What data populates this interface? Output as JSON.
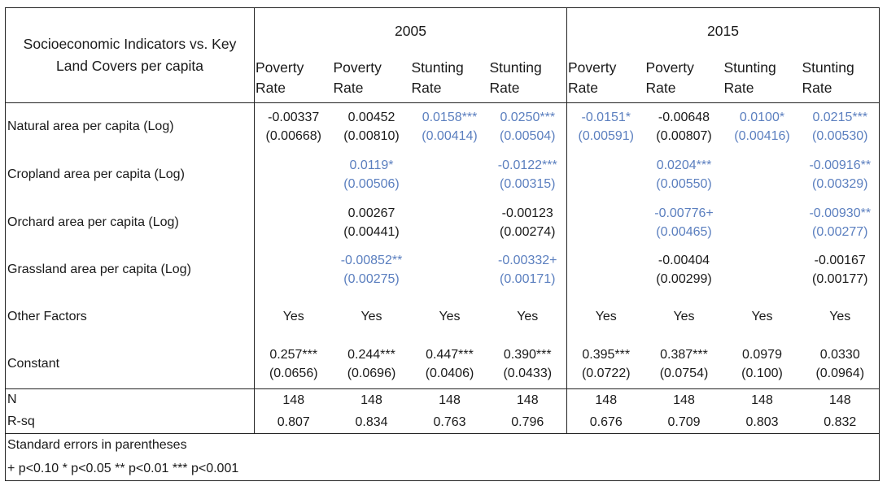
{
  "table": {
    "corner_title": "Socioeconomic Indicators vs. Key Land Covers per capita",
    "years": [
      "2005",
      "2015"
    ],
    "column_headers": [
      "Poverty Rate",
      "Poverty Rate",
      "Stunting Rate",
      "Stunting Rate",
      "Poverty Rate",
      "Poverty Rate",
      "Stunting Rate",
      "Stunting Rate"
    ],
    "highlight_color": "#5b7fbf",
    "rows": [
      {
        "label": "Natural area per capita (Log)",
        "cells": [
          {
            "coef": "-0.00337",
            "se": "(0.00668)",
            "sig": false
          },
          {
            "coef": "0.00452",
            "se": "(0.00810)",
            "sig": false
          },
          {
            "coef": "0.0158***",
            "se": "(0.00414)",
            "sig": true
          },
          {
            "coef": "0.0250***",
            "se": "(0.00504)",
            "sig": true
          },
          {
            "coef": "-0.0151*",
            "se": "(0.00591)",
            "sig": true
          },
          {
            "coef": "-0.00648",
            "se": "(0.00807)",
            "sig": false
          },
          {
            "coef": "0.0100*",
            "se": "(0.00416)",
            "sig": true
          },
          {
            "coef": "0.0215***",
            "se": "(0.00530)",
            "sig": true
          }
        ]
      },
      {
        "label": "Cropland area per capita (Log)",
        "cells": [
          {
            "coef": "",
            "se": "",
            "sig": false
          },
          {
            "coef": "0.0119*",
            "se": "(0.00506)",
            "sig": true
          },
          {
            "coef": "",
            "se": "",
            "sig": false
          },
          {
            "coef": "-0.0122***",
            "se": "(0.00315)",
            "sig": true
          },
          {
            "coef": "",
            "se": "",
            "sig": false
          },
          {
            "coef": "0.0204***",
            "se": "(0.00550)",
            "sig": true
          },
          {
            "coef": "",
            "se": "",
            "sig": false
          },
          {
            "coef": "-0.00916**",
            "se": "(0.00329)",
            "sig": true
          }
        ]
      },
      {
        "label": "Orchard area per capita (Log)",
        "cells": [
          {
            "coef": "",
            "se": "",
            "sig": false
          },
          {
            "coef": "0.00267",
            "se": "(0.00441)",
            "sig": false
          },
          {
            "coef": "",
            "se": "",
            "sig": false
          },
          {
            "coef": "-0.00123",
            "se": "(0.00274)",
            "sig": false
          },
          {
            "coef": "",
            "se": "",
            "sig": false
          },
          {
            "coef": "-0.00776+",
            "se": "(0.00465)",
            "sig": true
          },
          {
            "coef": "",
            "se": "",
            "sig": false
          },
          {
            "coef": "-0.00930**",
            "se": "(0.00277)",
            "sig": true
          }
        ]
      },
      {
        "label": "Grassland area per capita (Log)",
        "cells": [
          {
            "coef": "",
            "se": "",
            "sig": false
          },
          {
            "coef": "-0.00852**",
            "se": "(0.00275)",
            "sig": true
          },
          {
            "coef": "",
            "se": "",
            "sig": false
          },
          {
            "coef": "-0.00332+",
            "se": "(0.00171)",
            "sig": true
          },
          {
            "coef": "",
            "se": "",
            "sig": false
          },
          {
            "coef": "-0.00404",
            "se": "(0.00299)",
            "sig": false
          },
          {
            "coef": "",
            "se": "",
            "sig": false
          },
          {
            "coef": "-0.00167",
            "se": "(0.00177)",
            "sig": false
          }
        ]
      }
    ],
    "other_factors": {
      "label": "Other Factors",
      "values": [
        "Yes",
        "Yes",
        "Yes",
        "Yes",
        "Yes",
        "Yes",
        "Yes",
        "Yes"
      ]
    },
    "constant": {
      "label": "Constant",
      "cells": [
        {
          "coef": "0.257***",
          "se": "(0.0656)"
        },
        {
          "coef": "0.244***",
          "se": "(0.0696)"
        },
        {
          "coef": "0.447***",
          "se": "(0.0406)"
        },
        {
          "coef": "0.390***",
          "se": "(0.0433)"
        },
        {
          "coef": "0.395***",
          "se": "(0.0722)"
        },
        {
          "coef": "0.387***",
          "se": "(0.0754)"
        },
        {
          "coef": "0.0979",
          "se": "(0.100)"
        },
        {
          "coef": "0.0330",
          "se": "(0.0964)"
        }
      ]
    },
    "n": {
      "label": "N",
      "values": [
        "148",
        "148",
        "148",
        "148",
        "148",
        "148",
        "148",
        "148"
      ]
    },
    "rsq": {
      "label": "R-sq",
      "values": [
        "0.807",
        "0.834",
        "0.763",
        "0.796",
        "0.676",
        "0.709",
        "0.803",
        "0.832"
      ]
    },
    "notes": [
      "Standard errors in parentheses",
      "+ p<0.10 * p<0.05 ** p<0.01 *** p<0.001"
    ]
  }
}
